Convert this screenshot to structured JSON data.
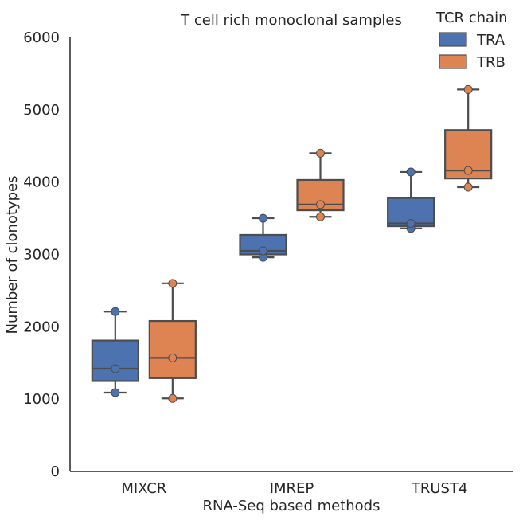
{
  "chart_data": {
    "type": "box",
    "title": "T cell rich monoclonal samples",
    "xlabel": "RNA-Seq based methods",
    "ylabel": "Number of clonotypes",
    "ylim": [
      0,
      6000
    ],
    "yticks": [
      "0",
      "1000",
      "2000",
      "3000",
      "4000",
      "5000",
      "6000"
    ],
    "categories": [
      "MIXCR",
      "IMREP",
      "TRUST4"
    ],
    "legend": {
      "title": "TCR chain",
      "position": "top-right"
    },
    "grid": false,
    "series": [
      {
        "name": "TRA",
        "color": "#4c72b0",
        "boxes": [
          {
            "whisker_low": 1090,
            "q1": 1250,
            "median": 1420,
            "q3": 1810,
            "whisker_high": 2210,
            "points": [
              1090,
              1420,
              2210
            ]
          },
          {
            "whisker_low": 2960,
            "q1": 3000,
            "median": 3050,
            "q3": 3270,
            "whisker_high": 3500,
            "points": [
              2960,
              3050,
              3500
            ]
          },
          {
            "whisker_low": 3360,
            "q1": 3390,
            "median": 3430,
            "q3": 3780,
            "whisker_high": 4140,
            "points": [
              3360,
              3430,
              4140
            ]
          }
        ]
      },
      {
        "name": "TRB",
        "color": "#dd8452",
        "boxes": [
          {
            "whisker_low": 1010,
            "q1": 1290,
            "median": 1570,
            "q3": 2080,
            "whisker_high": 2600,
            "points": [
              1010,
              1570,
              2600
            ]
          },
          {
            "whisker_low": 3520,
            "q1": 3610,
            "median": 3690,
            "q3": 4030,
            "whisker_high": 4400,
            "points": [
              3520,
              3690,
              4400
            ]
          },
          {
            "whisker_low": 3930,
            "q1": 4050,
            "median": 4160,
            "q3": 4720,
            "whisker_high": 5280,
            "points": [
              3930,
              4160,
              5280
            ]
          }
        ]
      }
    ]
  }
}
